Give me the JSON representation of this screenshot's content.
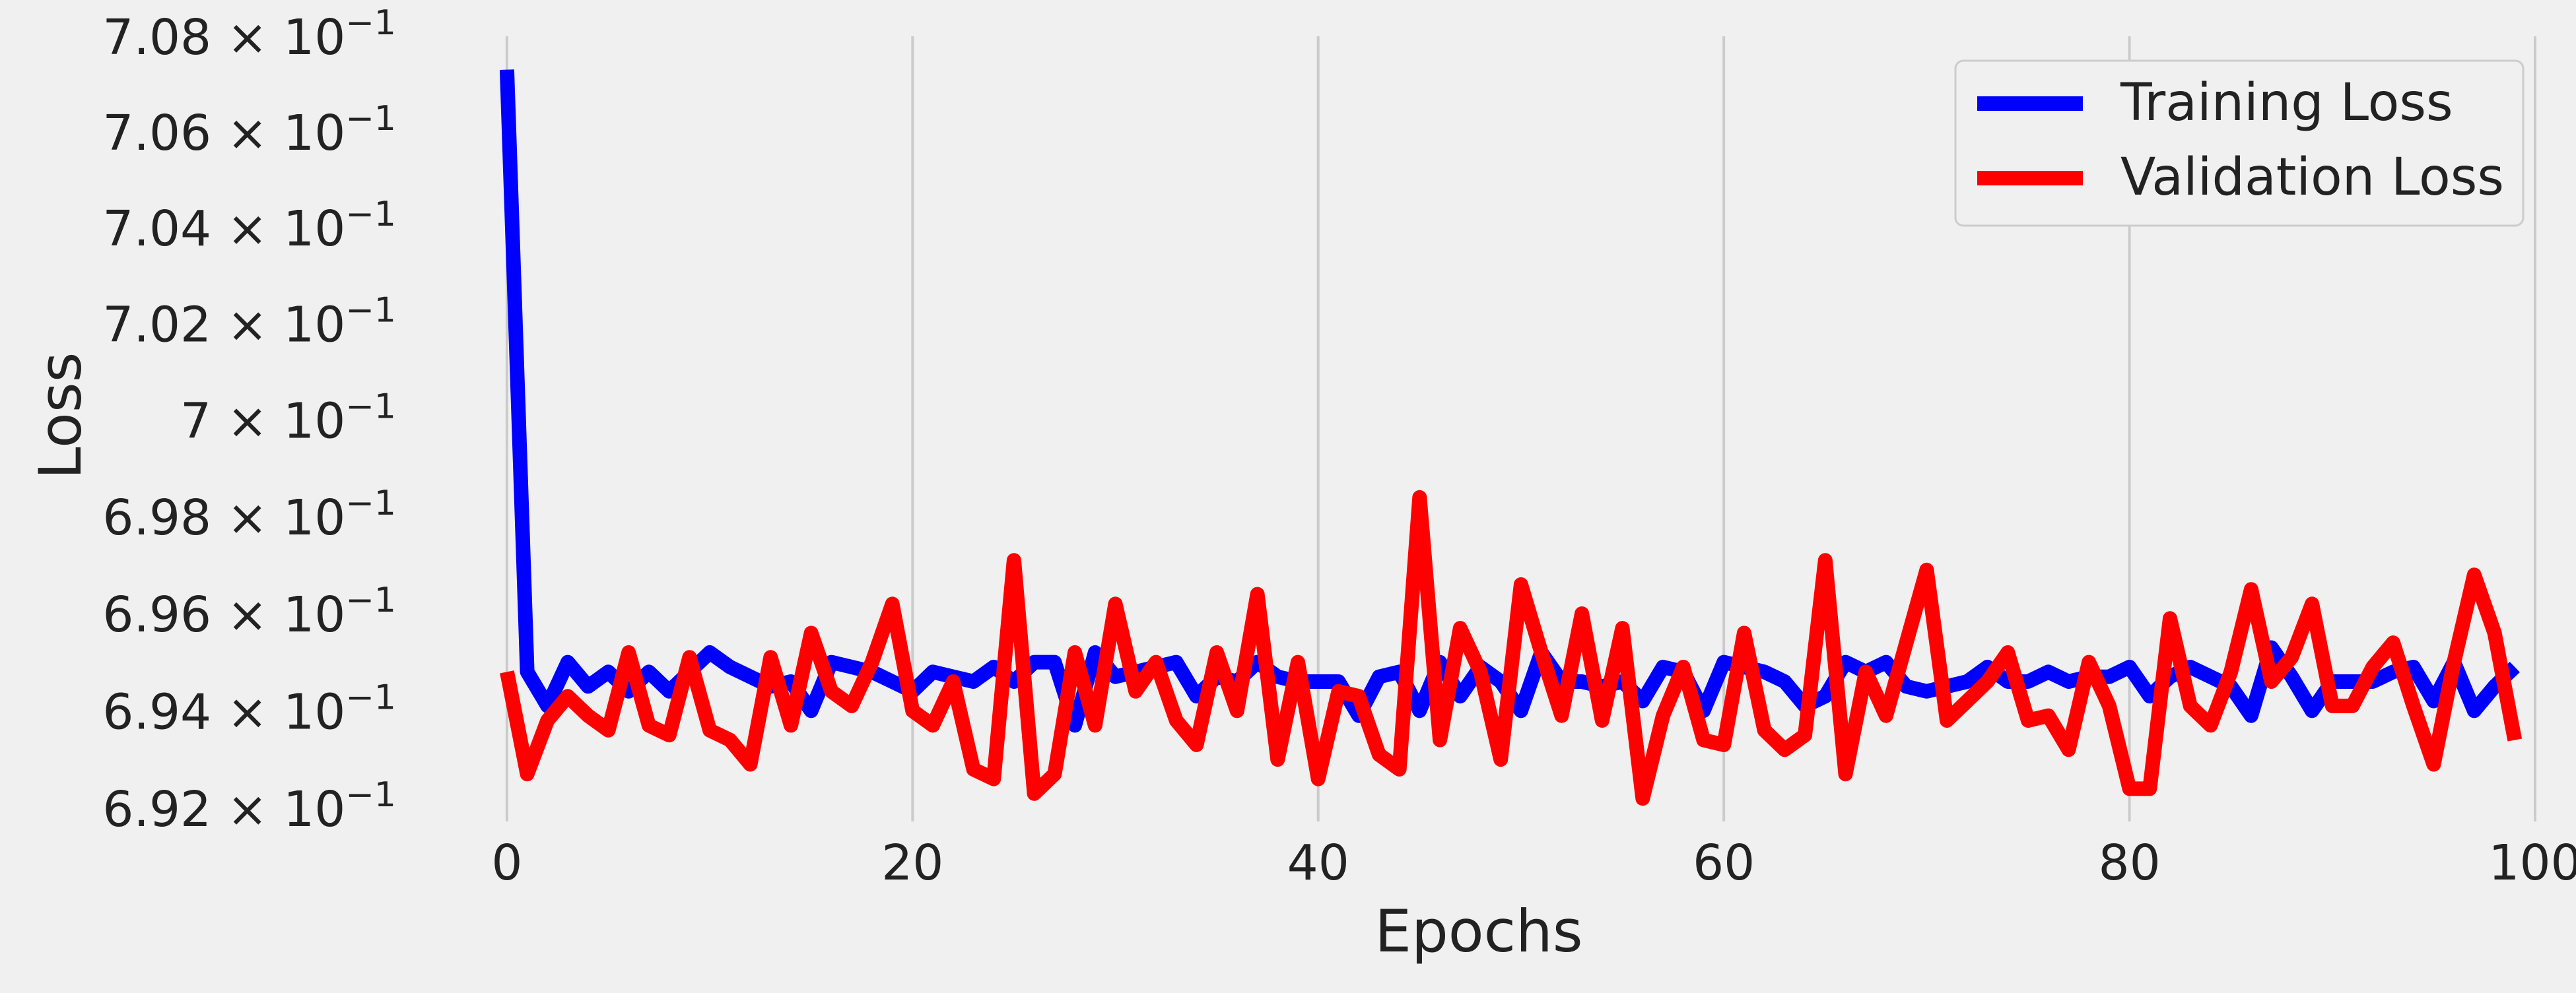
{
  "chart_data": {
    "type": "line",
    "title": "",
    "xlabel": "Epochs",
    "ylabel": "Loss",
    "xlim": [
      -4,
      100
    ],
    "ylim": [
      0.692,
      0.708
    ],
    "yscale": "log",
    "grid": "vertical",
    "background": "#f0f0f0",
    "legend_position": "top-right",
    "x_ticks": [
      {
        "value": 0,
        "label": "0"
      },
      {
        "value": 20,
        "label": "20"
      },
      {
        "value": 40,
        "label": "40"
      },
      {
        "value": 60,
        "label": "60"
      },
      {
        "value": 80,
        "label": "80"
      },
      {
        "value": 100,
        "label": "100"
      }
    ],
    "y_ticks": [
      {
        "value": 0.692,
        "mantissa": "6.92",
        "exponent": "−1"
      },
      {
        "value": 0.694,
        "mantissa": "6.94",
        "exponent": "−1"
      },
      {
        "value": 0.696,
        "mantissa": "6.96",
        "exponent": "−1"
      },
      {
        "value": 0.698,
        "mantissa": "6.98",
        "exponent": "−1"
      },
      {
        "value": 0.7,
        "mantissa": "7",
        "exponent": "−1"
      },
      {
        "value": 0.702,
        "mantissa": "7.02",
        "exponent": "−1"
      },
      {
        "value": 0.704,
        "mantissa": "7.04",
        "exponent": "−1"
      },
      {
        "value": 0.706,
        "mantissa": "7.06",
        "exponent": "−1"
      },
      {
        "value": 0.708,
        "mantissa": "7.08",
        "exponent": "−1"
      }
    ],
    "x": [
      0,
      1,
      2,
      3,
      4,
      5,
      6,
      7,
      8,
      9,
      10,
      11,
      12,
      13,
      14,
      15,
      16,
      17,
      18,
      19,
      20,
      21,
      22,
      23,
      24,
      25,
      26,
      27,
      28,
      29,
      30,
      31,
      32,
      33,
      34,
      35,
      36,
      37,
      38,
      39,
      40,
      41,
      42,
      43,
      44,
      45,
      46,
      47,
      48,
      49,
      50,
      51,
      52,
      53,
      54,
      55,
      56,
      57,
      58,
      59,
      60,
      61,
      62,
      63,
      64,
      65,
      66,
      67,
      68,
      69,
      70,
      71,
      72,
      73,
      74,
      75,
      76,
      77,
      78,
      79,
      80,
      81,
      82,
      83,
      84,
      85,
      86,
      87,
      88,
      89,
      90,
      91,
      92,
      93,
      94,
      95,
      96,
      97,
      98,
      99
    ],
    "series": [
      {
        "name": "Training Loss",
        "color": "#0000ff",
        "values": [
          0.7073,
          0.6948,
          0.6941,
          0.695,
          0.6945,
          0.6948,
          0.6944,
          0.6948,
          0.6944,
          0.6948,
          0.6952,
          0.6949,
          0.6947,
          0.6945,
          0.6946,
          0.694,
          0.695,
          0.6949,
          0.6948,
          0.6946,
          0.6944,
          0.6948,
          0.6947,
          0.6946,
          0.6949,
          0.6946,
          0.695,
          0.695,
          0.6937,
          0.6952,
          0.6947,
          0.6948,
          0.6949,
          0.695,
          0.6943,
          0.6947,
          0.6946,
          0.695,
          0.6947,
          0.6946,
          0.6946,
          0.6946,
          0.6939,
          0.6947,
          0.6948,
          0.694,
          0.695,
          0.6943,
          0.6949,
          0.6946,
          0.694,
          0.6952,
          0.6946,
          0.6946,
          0.6945,
          0.6946,
          0.6942,
          0.6949,
          0.6948,
          0.694,
          0.695,
          0.6949,
          0.6948,
          0.6946,
          0.6941,
          0.6943,
          0.695,
          0.6948,
          0.695,
          0.6945,
          0.6944,
          0.6945,
          0.6946,
          0.6949,
          0.6946,
          0.6946,
          0.6948,
          0.6946,
          0.6947,
          0.6947,
          0.6949,
          0.6943,
          0.6947,
          0.6949,
          0.6947,
          0.6945,
          0.6939,
          0.6953,
          0.6947,
          0.694,
          0.6946,
          0.6946,
          0.6946,
          0.6948,
          0.6949,
          0.6942,
          0.695,
          0.694,
          0.6945,
          0.6949
        ]
      },
      {
        "name": "Validation Loss",
        "color": "#ff0000",
        "values": [
          0.6948,
          0.6927,
          0.6938,
          0.6943,
          0.6939,
          0.6936,
          0.6952,
          0.6937,
          0.6935,
          0.6951,
          0.6936,
          0.6934,
          0.6929,
          0.6951,
          0.6937,
          0.6956,
          0.6944,
          0.6941,
          0.695,
          0.6962,
          0.694,
          0.6937,
          0.6946,
          0.6928,
          0.6926,
          0.6971,
          0.6923,
          0.6927,
          0.6952,
          0.6937,
          0.6962,
          0.6944,
          0.695,
          0.6938,
          0.6933,
          0.6952,
          0.694,
          0.6964,
          0.693,
          0.695,
          0.6926,
          0.6944,
          0.6943,
          0.6931,
          0.6928,
          0.6984,
          0.6934,
          0.6957,
          0.6948,
          0.693,
          0.6966,
          0.6952,
          0.6939,
          0.696,
          0.6938,
          0.6957,
          0.6922,
          0.6939,
          0.6949,
          0.6934,
          0.6933,
          0.6956,
          0.6936,
          0.6932,
          0.6935,
          0.6971,
          0.6927,
          0.6948,
          0.6939,
          0.6954,
          0.6969,
          0.6938,
          0.6942,
          0.6946,
          0.6952,
          0.6938,
          0.6939,
          0.6932,
          0.695,
          0.6941,
          0.6924,
          0.6924,
          0.6959,
          0.6941,
          0.6937,
          0.6948,
          0.6965,
          0.6946,
          0.6951,
          0.6962,
          0.6941,
          0.6941,
          0.6949,
          0.6954,
          0.6941,
          0.6929,
          0.695,
          0.6968,
          0.6956,
          0.6934
        ]
      }
    ]
  }
}
